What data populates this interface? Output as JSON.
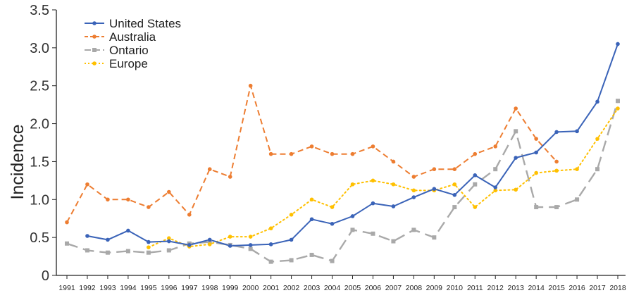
{
  "chart_data": {
    "type": "line",
    "ylabel": "Incidence",
    "ylim": [
      0,
      3.5
    ],
    "yticks": [
      "0",
      "0.5",
      "1.0",
      "1.5",
      "2.0",
      "2.5",
      "3.0",
      "3.5"
    ],
    "x": [
      1991,
      1992,
      1993,
      1994,
      1995,
      1996,
      1997,
      1998,
      1999,
      2000,
      2001,
      2002,
      2003,
      2004,
      2005,
      2006,
      2007,
      2008,
      2009,
      2010,
      2011,
      2012,
      2013,
      2014,
      2015,
      2016,
      2017,
      2018
    ],
    "legend_position": "top-left",
    "series": [
      {
        "name": "United States",
        "color": "#3a63b8",
        "style": "solid",
        "marker": "circle",
        "values": [
          null,
          0.52,
          0.47,
          0.59,
          0.44,
          0.45,
          0.4,
          0.47,
          0.39,
          0.4,
          0.41,
          0.47,
          0.74,
          0.68,
          0.78,
          0.95,
          0.91,
          1.03,
          1.14,
          1.06,
          1.32,
          1.16,
          1.55,
          1.62,
          1.89,
          1.9,
          2.29,
          3.05
        ]
      },
      {
        "name": "Australia",
        "color": "#ed7d31",
        "style": "dashed",
        "marker": "circle",
        "values": [
          0.7,
          1.2,
          1.0,
          1.0,
          0.9,
          1.1,
          0.8,
          1.4,
          1.3,
          2.5,
          1.6,
          1.6,
          1.7,
          1.6,
          1.6,
          1.7,
          1.5,
          1.3,
          1.4,
          1.4,
          1.6,
          1.7,
          2.2,
          1.8,
          1.5,
          null,
          null,
          null
        ]
      },
      {
        "name": "Ontario",
        "color": "#a9a9a9",
        "style": "longdash",
        "marker": "square",
        "values": [
          0.42,
          0.33,
          0.3,
          0.32,
          0.3,
          0.33,
          0.42,
          0.44,
          0.4,
          0.35,
          0.18,
          0.2,
          0.27,
          0.19,
          0.6,
          0.55,
          0.45,
          0.6,
          0.5,
          0.9,
          1.2,
          1.4,
          1.9,
          0.9,
          0.9,
          1.0,
          1.4,
          2.3
        ]
      },
      {
        "name": "Europe",
        "color": "#ffc000",
        "style": "dotted",
        "marker": "circle",
        "values": [
          null,
          null,
          null,
          null,
          0.37,
          0.49,
          0.38,
          0.41,
          0.51,
          0.51,
          0.62,
          0.8,
          1.0,
          0.9,
          1.2,
          1.25,
          1.2,
          1.12,
          1.12,
          1.2,
          0.9,
          1.12,
          1.13,
          1.35,
          1.38,
          1.4,
          1.8,
          2.2
        ]
      }
    ]
  }
}
